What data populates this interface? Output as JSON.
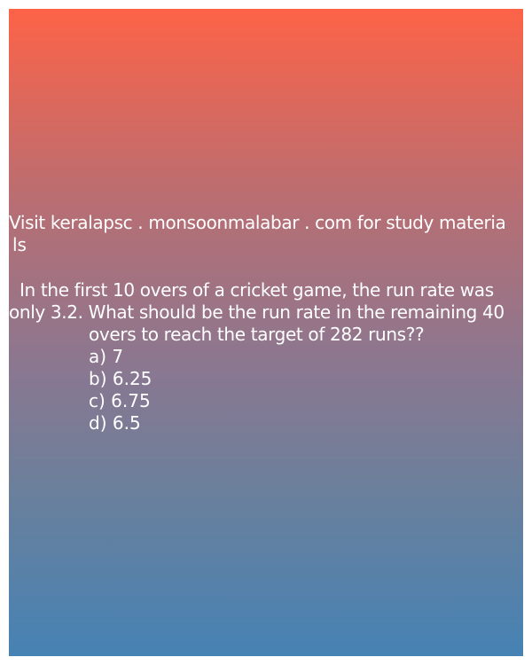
{
  "promo": {
    "line1": "Visit keralapsc . monsoonmalabar . com for study materia",
    "line2": "ls"
  },
  "question": {
    "line1": "In the first 10 overs of a cricket game, the run rate was",
    "line2": "only 3.2. What should be the run rate in the remaining 40",
    "line3": "overs to reach the target of 282 runs??"
  },
  "options": [
    "a) 7",
    "b) 6.25",
    "c) 6.75",
    "d) 6.5"
  ],
  "colors": {
    "gradient_top": "#fd6347",
    "gradient_bottom": "#4682b4",
    "text": "#ffffff"
  }
}
